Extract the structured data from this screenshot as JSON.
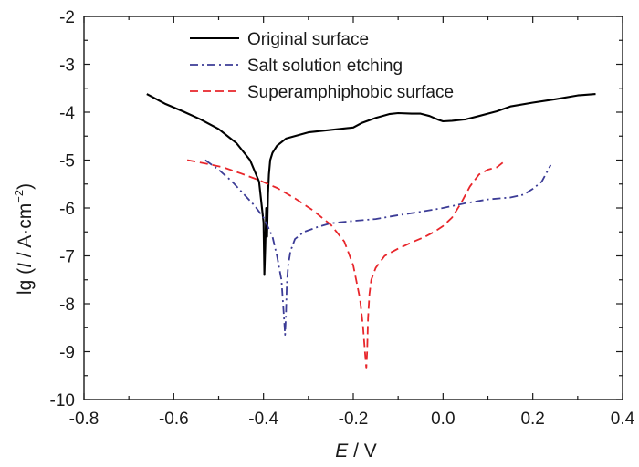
{
  "chart_data": {
    "type": "line",
    "title": "",
    "xlabel": {
      "var": "E",
      "unit": " / V"
    },
    "ylabel": {
      "prefix": "lg (",
      "var": "I",
      "mid": " / A·cm",
      "sup": "−2",
      "suffix": ")"
    },
    "xlim": [
      -0.8,
      0.4
    ],
    "ylim": [
      -10,
      -2
    ],
    "xticks": [
      -0.8,
      -0.6,
      -0.4,
      -0.2,
      0.0,
      0.2,
      0.4
    ],
    "xtick_labels": [
      "-0.8",
      "-0.6",
      "-0.4",
      "-0.2",
      "0.0",
      "0.2",
      "0.4"
    ],
    "yticks": [
      -10,
      -9,
      -8,
      -7,
      -6,
      -5,
      -4,
      -3,
      -2
    ],
    "ytick_labels": [
      "-10",
      "-9",
      "-8",
      "-7",
      "-6",
      "-5",
      "-4",
      "-3",
      "-2"
    ],
    "grid": false,
    "legend_position": "top-center",
    "series": [
      {
        "name": "Original surface",
        "color": "#000000",
        "dash": "solid",
        "x": [
          -0.66,
          -0.62,
          -0.58,
          -0.54,
          -0.5,
          -0.46,
          -0.43,
          -0.41,
          -0.4,
          -0.398,
          -0.396,
          -0.394,
          -0.392,
          -0.39,
          -0.388,
          -0.385,
          -0.38,
          -0.37,
          -0.35,
          -0.3,
          -0.25,
          -0.2,
          -0.18,
          -0.15,
          -0.12,
          -0.1,
          -0.07,
          -0.05,
          -0.03,
          -0.02,
          -0.01,
          0.0,
          0.02,
          0.05,
          0.08,
          0.12,
          0.15,
          0.2,
          0.25,
          0.3,
          0.34
        ],
        "y": [
          -3.62,
          -3.82,
          -3.98,
          -4.15,
          -4.35,
          -4.65,
          -5.0,
          -5.45,
          -6.3,
          -7.4,
          -6.8,
          -6.0,
          -6.6,
          -5.7,
          -5.3,
          -5.0,
          -4.85,
          -4.7,
          -4.55,
          -4.42,
          -4.37,
          -4.32,
          -4.22,
          -4.12,
          -4.04,
          -4.02,
          -4.03,
          -4.03,
          -4.08,
          -4.12,
          -4.16,
          -4.19,
          -4.18,
          -4.15,
          -4.08,
          -3.98,
          -3.88,
          -3.8,
          -3.73,
          -3.65,
          -3.62
        ]
      },
      {
        "name": "Salt solution etching",
        "color": "#3c3c96",
        "dash": "dashdot",
        "x": [
          -0.53,
          -0.5,
          -0.47,
          -0.44,
          -0.42,
          -0.4,
          -0.38,
          -0.37,
          -0.36,
          -0.355,
          -0.352,
          -0.35,
          -0.348,
          -0.345,
          -0.34,
          -0.33,
          -0.31,
          -0.28,
          -0.25,
          -0.2,
          -0.15,
          -0.1,
          -0.05,
          0.0,
          0.05,
          0.1,
          0.15,
          0.18,
          0.2,
          0.22,
          0.24
        ],
        "y": [
          -5.0,
          -5.2,
          -5.45,
          -5.75,
          -5.95,
          -6.2,
          -6.6,
          -7.0,
          -7.5,
          -8.2,
          -8.65,
          -8.2,
          -7.6,
          -7.2,
          -6.9,
          -6.65,
          -6.5,
          -6.4,
          -6.32,
          -6.27,
          -6.23,
          -6.15,
          -6.08,
          -6.0,
          -5.9,
          -5.82,
          -5.78,
          -5.72,
          -5.6,
          -5.45,
          -5.1
        ]
      },
      {
        "name": "Superamphiphobic surface",
        "color": "#e8262b",
        "dash": "dashed",
        "x": [
          -0.57,
          -0.53,
          -0.49,
          -0.45,
          -0.41,
          -0.37,
          -0.33,
          -0.29,
          -0.25,
          -0.22,
          -0.2,
          -0.185,
          -0.178,
          -0.174,
          -0.171,
          -0.169,
          -0.167,
          -0.164,
          -0.16,
          -0.15,
          -0.13,
          -0.1,
          -0.07,
          -0.04,
          -0.02,
          0.0,
          0.02,
          0.04,
          0.06,
          0.08,
          0.1,
          0.12,
          0.14
        ],
        "y": [
          -5.0,
          -5.07,
          -5.15,
          -5.28,
          -5.42,
          -5.58,
          -5.8,
          -6.05,
          -6.35,
          -6.7,
          -7.2,
          -7.9,
          -8.5,
          -9.0,
          -9.35,
          -9.0,
          -8.3,
          -7.8,
          -7.5,
          -7.25,
          -7.0,
          -6.85,
          -6.72,
          -6.6,
          -6.5,
          -6.38,
          -6.2,
          -5.9,
          -5.55,
          -5.3,
          -5.2,
          -5.15,
          -5.0
        ]
      }
    ]
  }
}
